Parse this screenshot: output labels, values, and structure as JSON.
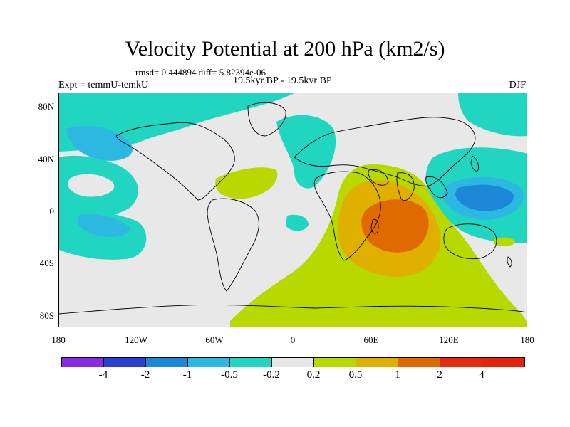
{
  "header": {
    "title": "Velocity Potential at 200 hPa (km2/s)",
    "rmsd_line": "rmsd= 0.444894 diff= 5.82394e-06",
    "experiment": "Expt = temmU-temkU",
    "period": "19.5kyr BP - 19.5kyr BP",
    "season": "DJF"
  },
  "map": {
    "lat_ticks": [
      "80N",
      "40N",
      "0",
      "40S",
      "80S"
    ],
    "lon_ticks": [
      "180",
      "120W",
      "60W",
      "0",
      "60E",
      "120E",
      "180"
    ],
    "lat_range": [
      -90,
      90
    ],
    "lon_range": [
      -180,
      180
    ],
    "colors": {
      "ocean_background": "#e8e8e8",
      "coastline": "#000000"
    }
  },
  "colorbar": {
    "labels": [
      "-4",
      "-2",
      "-1",
      "-0.5",
      "-0.2",
      "0.2",
      "0.5",
      "1",
      "2",
      "4"
    ],
    "colors": [
      "#8a2be2",
      "#2a3fd6",
      "#1e88d8",
      "#2cb8e0",
      "#20d6c0",
      "#e6e6e6",
      "#b8d800",
      "#e0b000",
      "#e06a00",
      "#e42a10",
      "#e8220a"
    ]
  }
}
